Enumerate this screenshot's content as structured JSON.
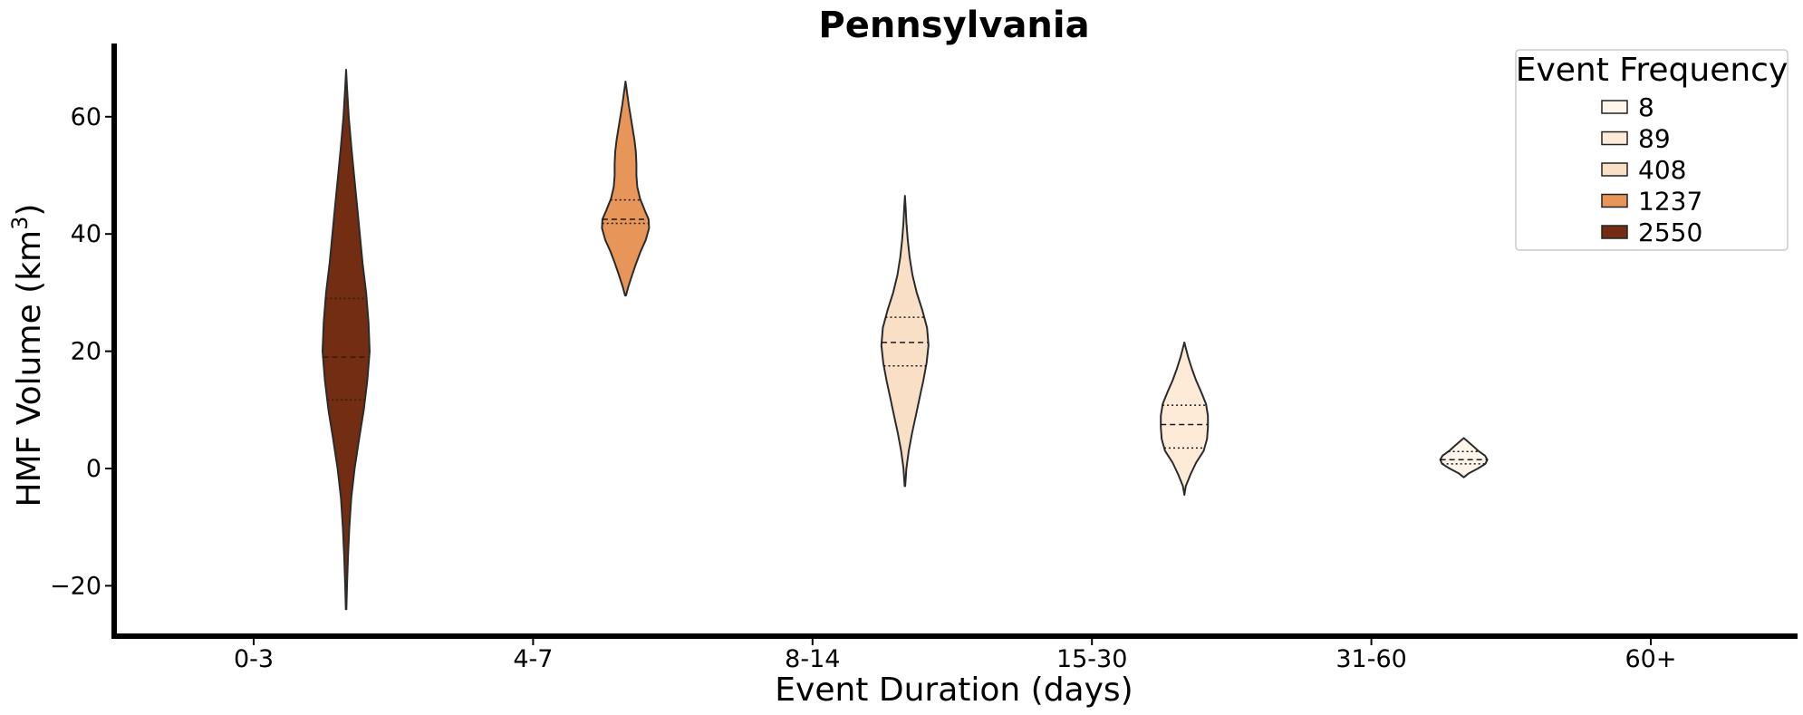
{
  "chart_data": {
    "type": "violin",
    "title": "Pennsylvania",
    "xlabel": "Event Duration (days)",
    "ylabel_main": "HMF Volume (km",
    "ylabel_sup": "3",
    "ylabel_end": ")",
    "categories": [
      "0-3",
      "4-7",
      "8-14",
      "15-30",
      "31-60",
      "60+"
    ],
    "ylim": [
      -29,
      73
    ],
    "yticks": [
      -20,
      0,
      20,
      40,
      60
    ],
    "ytick_labels": [
      "−20",
      "0",
      "20",
      "40",
      "60"
    ],
    "grid": false,
    "legend": {
      "title": "Event Frequency",
      "placement": "top-right",
      "entries": [
        {
          "label": "8",
          "color": "#fff5eb"
        },
        {
          "label": "89",
          "color": "#fdebd8"
        },
        {
          "label": "408",
          "color": "#f9dfc6"
        },
        {
          "label": "1237",
          "color": "#e8955a"
        },
        {
          "label": "2550",
          "color": "#732d12"
        }
      ]
    },
    "violins": [
      {
        "category": "0-3",
        "frequency": 2550,
        "color": "#732d12",
        "min": -24,
        "max": 68,
        "q1": 11.7,
        "median": 19,
        "q3": 29,
        "profile": [
          [
            -24,
            0.01
          ],
          [
            -20,
            0.04
          ],
          [
            -15,
            0.08
          ],
          [
            -10,
            0.14
          ],
          [
            -5,
            0.22
          ],
          [
            0,
            0.36
          ],
          [
            5,
            0.55
          ],
          [
            10,
            0.75
          ],
          [
            15,
            0.9
          ],
          [
            20,
            1.0
          ],
          [
            25,
            0.95
          ],
          [
            30,
            0.85
          ],
          [
            35,
            0.7
          ],
          [
            40,
            0.58
          ],
          [
            45,
            0.46
          ],
          [
            50,
            0.34
          ],
          [
            55,
            0.22
          ],
          [
            60,
            0.11
          ],
          [
            65,
            0.04
          ],
          [
            68,
            0.0
          ]
        ]
      },
      {
        "category": "4-7",
        "frequency": 1237,
        "color": "#e8955a",
        "min": 29.5,
        "max": 66,
        "q1": 41.8,
        "median": 42.5,
        "q3": 45.8,
        "profile": [
          [
            29.5,
            0.02
          ],
          [
            31,
            0.12
          ],
          [
            33,
            0.28
          ],
          [
            35,
            0.45
          ],
          [
            37,
            0.64
          ],
          [
            39,
            0.86
          ],
          [
            41,
            1.0
          ],
          [
            42.5,
            0.98
          ],
          [
            44,
            0.82
          ],
          [
            46,
            0.62
          ],
          [
            48,
            0.5
          ],
          [
            50,
            0.46
          ],
          [
            52,
            0.46
          ],
          [
            54,
            0.44
          ],
          [
            56,
            0.38
          ],
          [
            58,
            0.3
          ],
          [
            60,
            0.22
          ],
          [
            62,
            0.14
          ],
          [
            64,
            0.07
          ],
          [
            66,
            0.0
          ]
        ]
      },
      {
        "category": "8-14",
        "frequency": 408,
        "color": "#f9dfc6",
        "min": -3,
        "max": 46.5,
        "q1": 17.5,
        "median": 21.5,
        "q3": 25.8,
        "profile": [
          [
            -3,
            0.01
          ],
          [
            0,
            0.06
          ],
          [
            3,
            0.16
          ],
          [
            6,
            0.3
          ],
          [
            9,
            0.46
          ],
          [
            12,
            0.62
          ],
          [
            15,
            0.78
          ],
          [
            18,
            0.92
          ],
          [
            21,
            1.0
          ],
          [
            24,
            0.94
          ],
          [
            27,
            0.74
          ],
          [
            30,
            0.5
          ],
          [
            33,
            0.32
          ],
          [
            36,
            0.2
          ],
          [
            39,
            0.12
          ],
          [
            42,
            0.06
          ],
          [
            44.5,
            0.03
          ],
          [
            46.5,
            0.0
          ]
        ]
      },
      {
        "category": "15-30",
        "frequency": 89,
        "color": "#fdebd8",
        "min": -4.5,
        "max": 21.5,
        "q1": 3.5,
        "median": 7.5,
        "q3": 10.8,
        "profile": [
          [
            -4.5,
            0.0
          ],
          [
            -3,
            0.06
          ],
          [
            -1,
            0.26
          ],
          [
            1,
            0.5
          ],
          [
            3,
            0.82
          ],
          [
            5,
            0.96
          ],
          [
            7,
            1.0
          ],
          [
            9,
            1.0
          ],
          [
            11,
            0.92
          ],
          [
            13,
            0.72
          ],
          [
            15,
            0.5
          ],
          [
            17,
            0.32
          ],
          [
            19,
            0.16
          ],
          [
            21.5,
            0.0
          ]
        ]
      },
      {
        "category": "31-60",
        "frequency": 8,
        "color": "#fff5eb",
        "min": -1.5,
        "max": 5.2,
        "q1": 0.8,
        "median": 1.5,
        "q3": 2.9,
        "profile": [
          [
            -1.5,
            0.0
          ],
          [
            -0.8,
            0.22
          ],
          [
            0,
            0.6
          ],
          [
            0.8,
            0.92
          ],
          [
            1.5,
            1.0
          ],
          [
            2.2,
            0.9
          ],
          [
            3,
            0.62
          ],
          [
            3.8,
            0.4
          ],
          [
            4.5,
            0.2
          ],
          [
            5.2,
            0.0
          ]
        ]
      }
    ]
  }
}
